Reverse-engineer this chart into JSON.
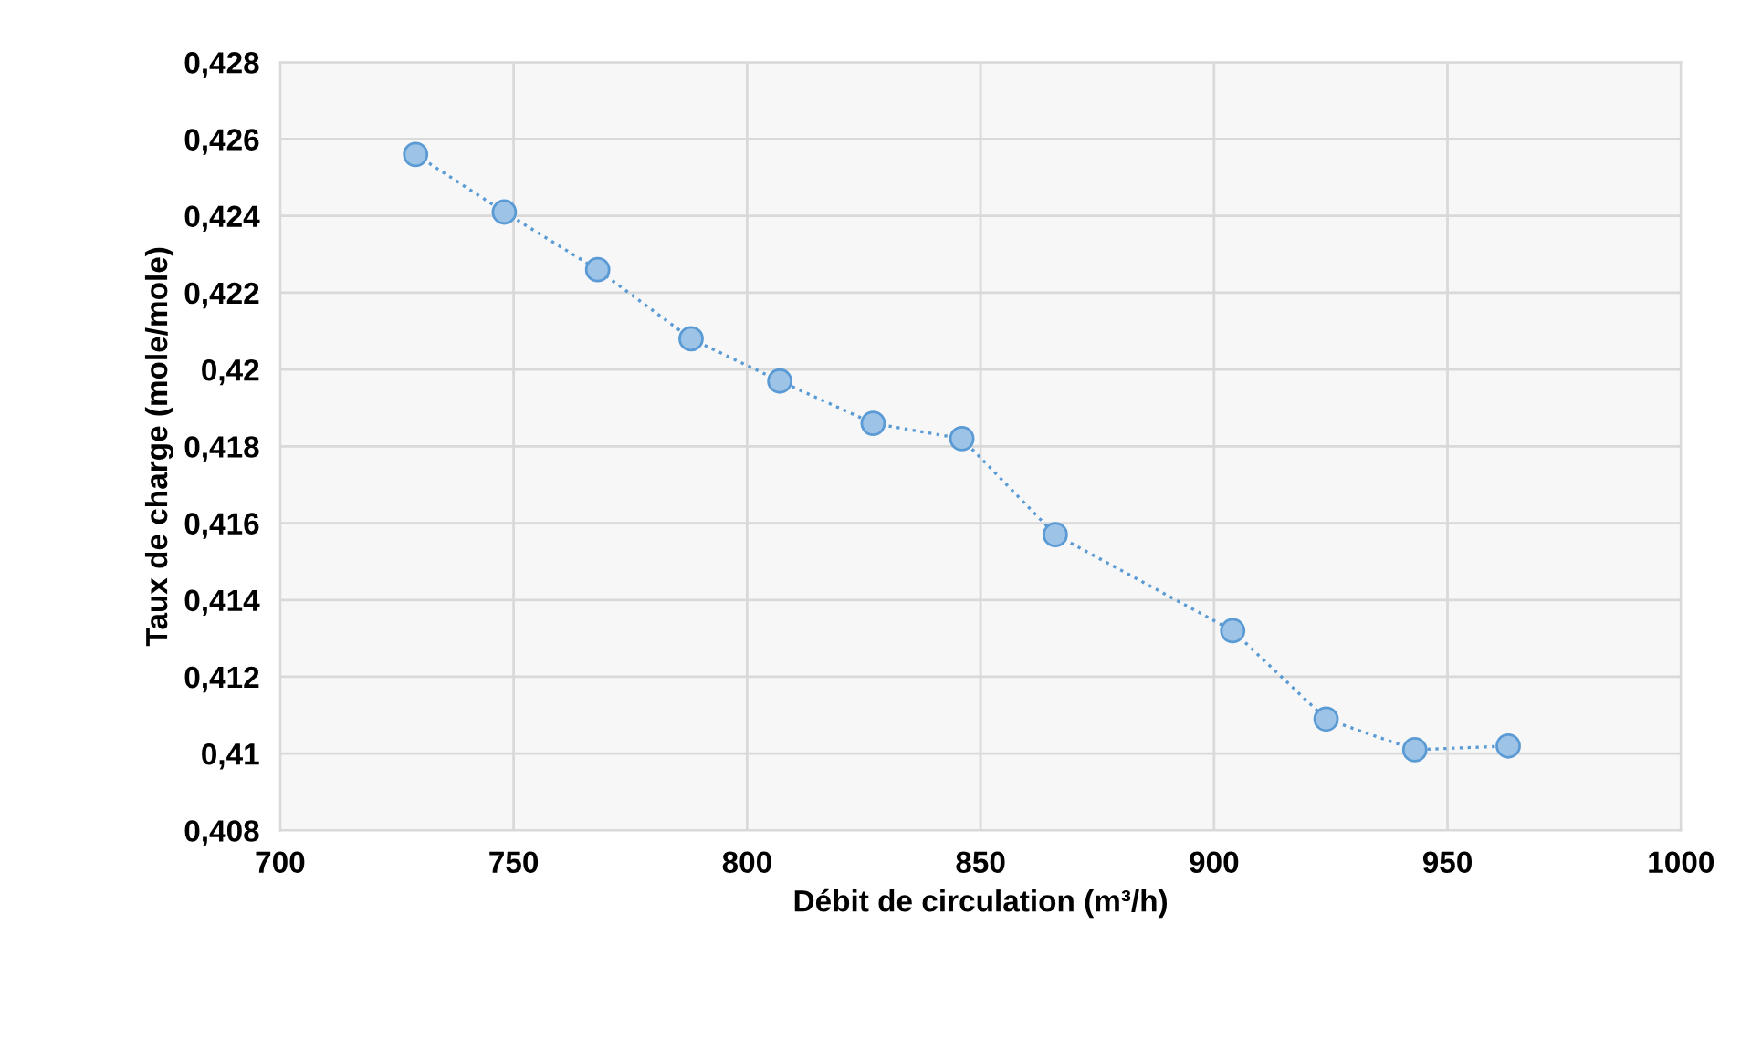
{
  "chart_data": {
    "type": "line",
    "xlabel": "Débit de circulation (m³/h)",
    "ylabel": "Taux de charge (mole/mole)",
    "series": [
      {
        "color": "#5b9bd5",
        "x": [
          729,
          748,
          768,
          788,
          807,
          827,
          846,
          866,
          904,
          924,
          943,
          963
        ],
        "values": [
          0.4256,
          0.4241,
          0.4226,
          0.4208,
          0.4197,
          0.4186,
          0.4182,
          0.4157,
          0.4132,
          0.4109,
          0.4101,
          0.4102
        ]
      }
    ],
    "xlim": [
      700,
      1000
    ],
    "xticks": [
      700,
      750,
      800,
      850,
      900,
      950,
      1000
    ],
    "ylim": [
      0.408,
      0.428
    ],
    "yticks": [
      {
        "value": 0.408,
        "label": "0,408"
      },
      {
        "value": 0.41,
        "label": "0,41"
      },
      {
        "value": 0.412,
        "label": "0,412"
      },
      {
        "value": 0.414,
        "label": "0,414"
      },
      {
        "value": 0.416,
        "label": "0,416"
      },
      {
        "value": 0.418,
        "label": "0,418"
      },
      {
        "value": 0.42,
        "label": "0,42"
      },
      {
        "value": 0.422,
        "label": "0,422"
      },
      {
        "value": 0.424,
        "label": "0,424"
      },
      {
        "value": 0.426,
        "label": "0,426"
      },
      {
        "value": 0.428,
        "label": "0,428"
      }
    ],
    "grid": true,
    "marker": "circle",
    "line_style": "dotted"
  }
}
